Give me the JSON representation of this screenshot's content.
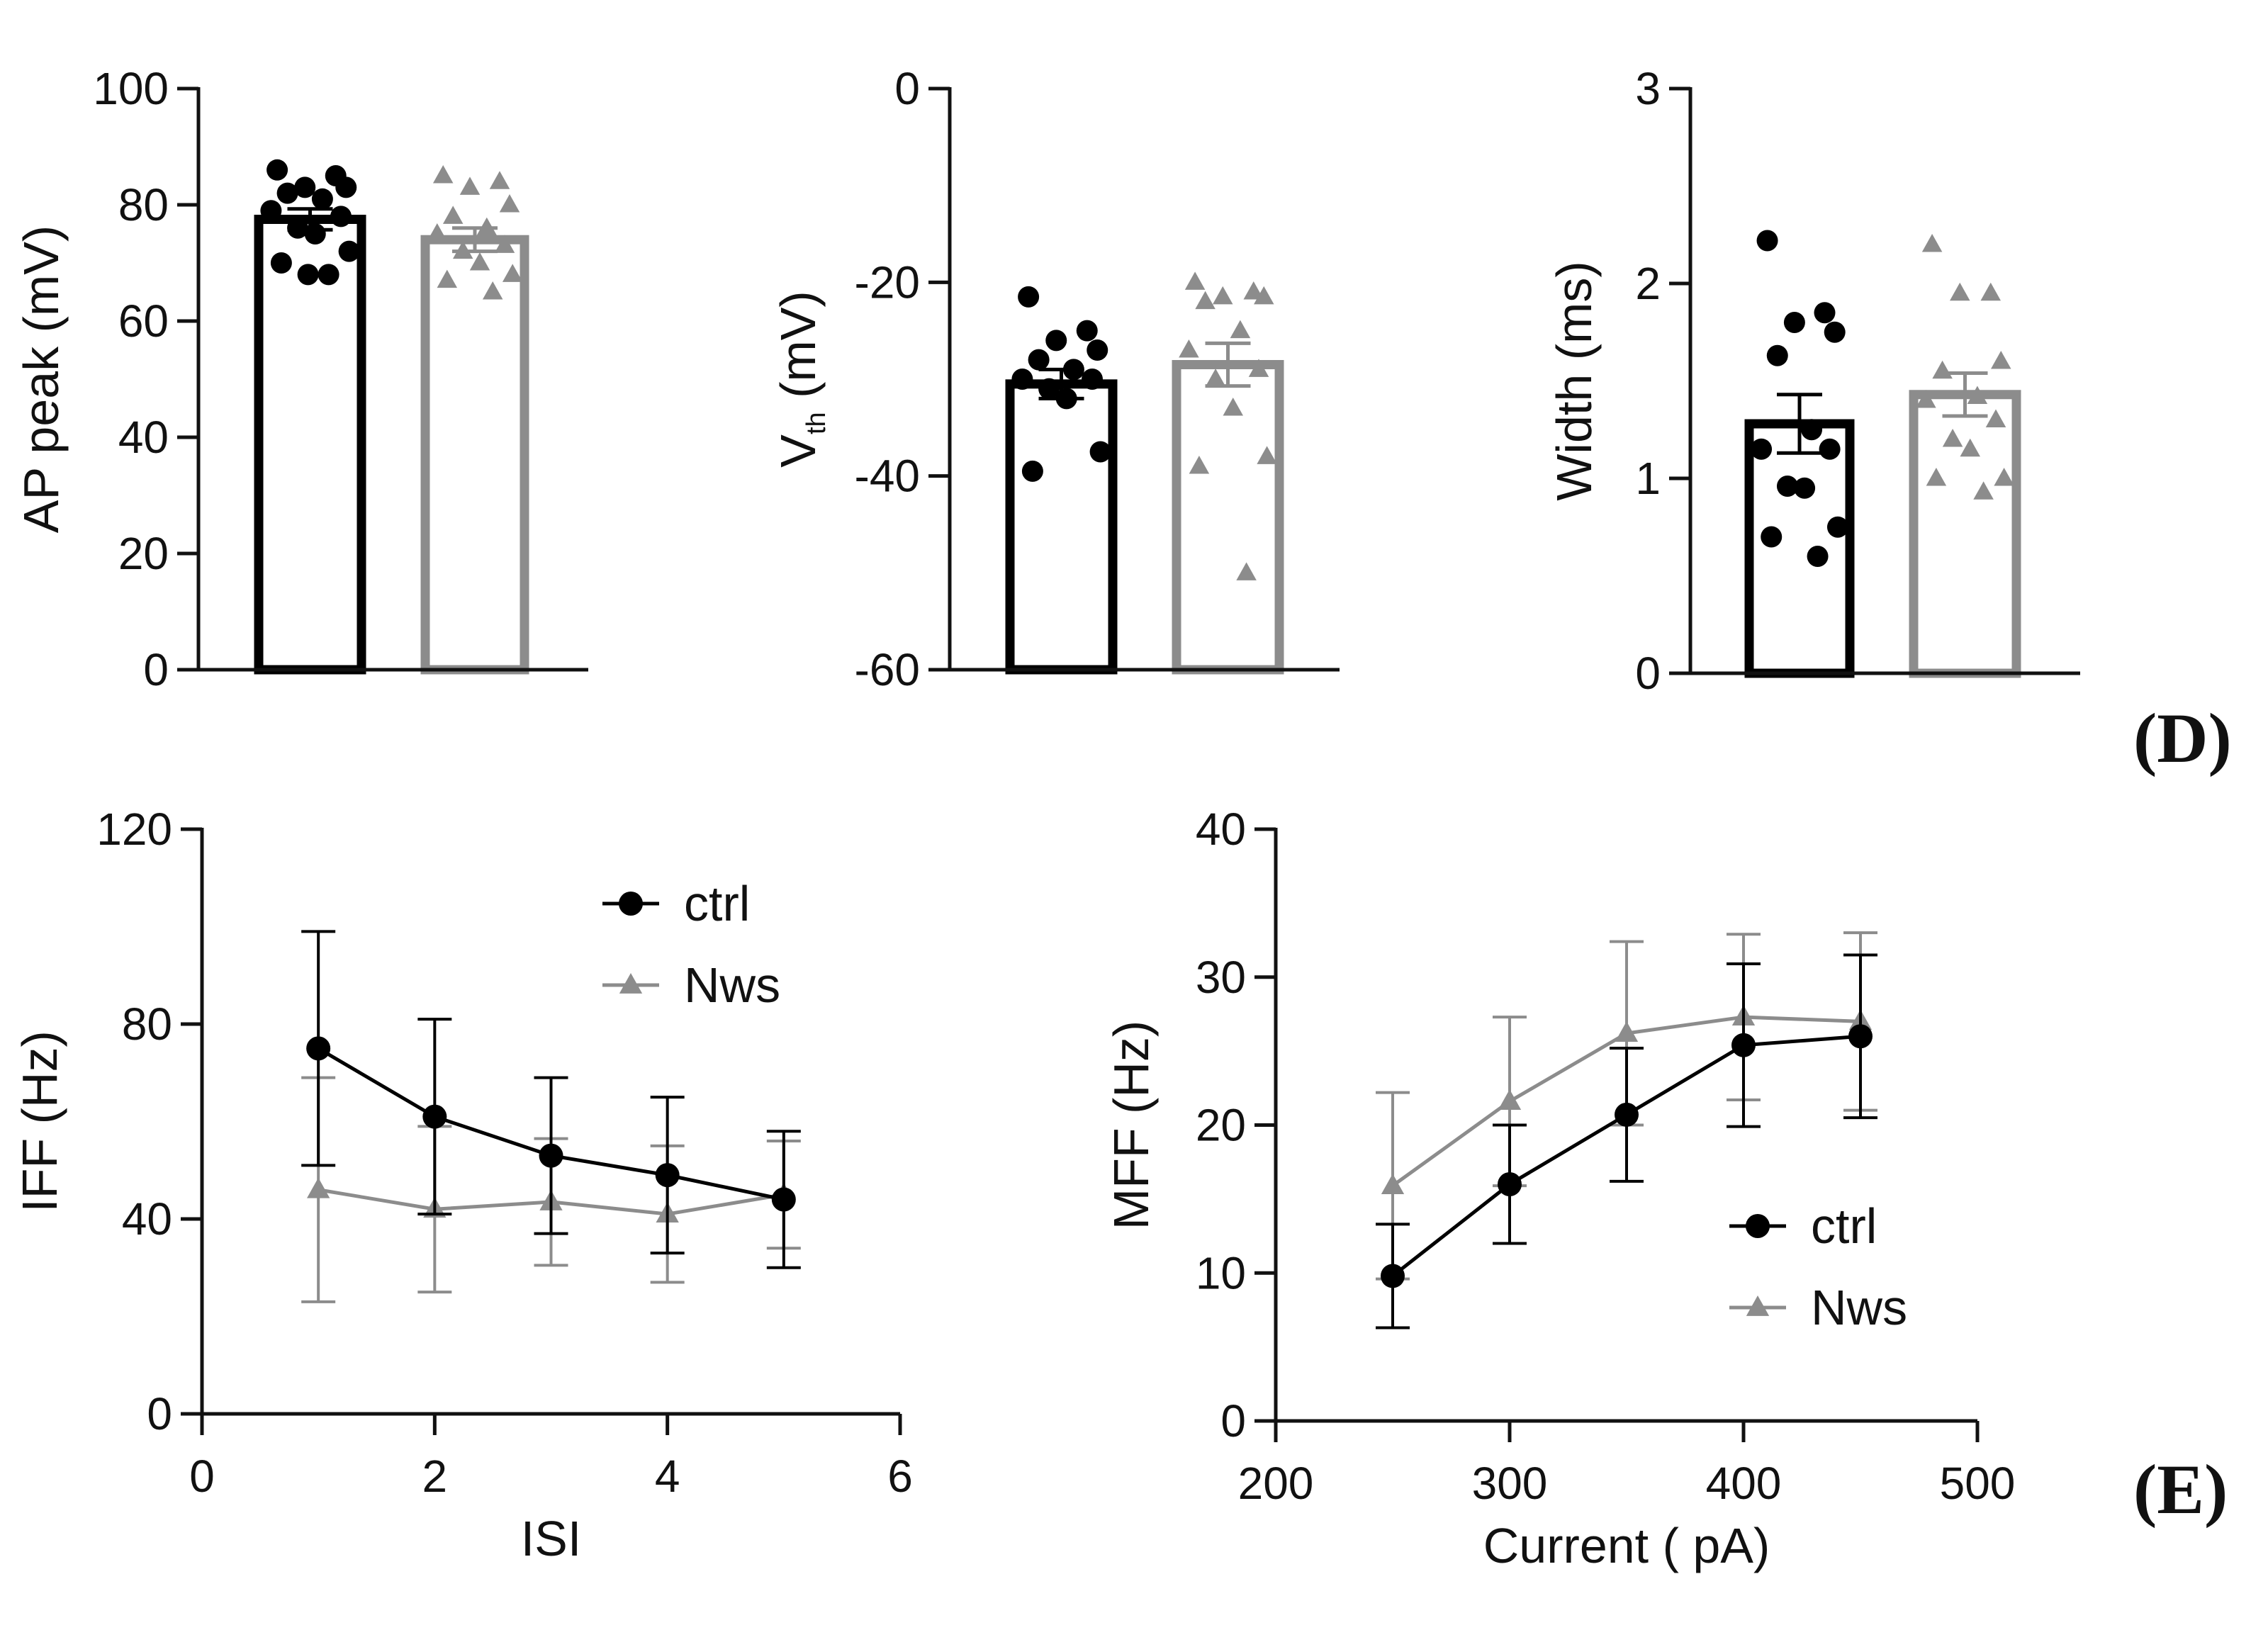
{
  "colors": {
    "ctrl": "#000000",
    "nws": "#8c8c8c",
    "axis": "#111111"
  },
  "chart_data": [
    {
      "id": "ap-peak",
      "type": "bar",
      "title": "",
      "xlabel": "",
      "ylabel": "AP peak (mV)",
      "ylim": [
        0,
        100
      ],
      "yticks": [
        0,
        20,
        40,
        60,
        80,
        100
      ],
      "ytick_labels": [
        "0",
        "20",
        "40",
        "60",
        "80",
        "100"
      ],
      "categories": [
        "ctrl",
        "Nws"
      ],
      "values": [
        77.5,
        74
      ],
      "sem": [
        1.8,
        2.0
      ],
      "points": [
        [
          86,
          85,
          83,
          83,
          82,
          81,
          79,
          78,
          76,
          75,
          72,
          70,
          68,
          68
        ],
        [
          85,
          84,
          83,
          80,
          78,
          76,
          75,
          73,
          72,
          70,
          68,
          67,
          65
        ]
      ]
    },
    {
      "id": "vth",
      "type": "bar",
      "title": "",
      "xlabel": "",
      "ylabel": "V",
      "ylabel_sub": "th",
      "ylabel_unit": " (mV)",
      "ylim": [
        -60,
        0
      ],
      "yticks": [
        -60,
        -40,
        -20,
        0
      ],
      "ytick_labels": [
        "-60",
        "-40",
        "-20",
        "0"
      ],
      "categories": [
        "ctrl",
        "Nws"
      ],
      "values": [
        -30.5,
        -28.5
      ],
      "sem": [
        1.5,
        2.2
      ],
      "points": [
        [
          -21.5,
          -25,
          -26,
          -27,
          -28,
          -29,
          -30,
          -30,
          -31,
          -32,
          -37.5,
          -39.5
        ],
        [
          -20,
          -21,
          -21.5,
          -21.5,
          -22,
          -25,
          -27,
          -29,
          -30,
          -33,
          -38,
          -39,
          -50
        ]
      ]
    },
    {
      "id": "width",
      "type": "bar",
      "title": "",
      "xlabel": "",
      "ylabel": "Width (ms)",
      "ylim": [
        0,
        3
      ],
      "yticks": [
        0,
        1,
        2,
        3
      ],
      "ytick_labels": [
        "0",
        "1",
        "2",
        "3"
      ],
      "categories": [
        "ctrl",
        "Nws"
      ],
      "values": [
        1.28,
        1.43
      ],
      "sem": [
        0.15,
        0.11
      ],
      "points": [
        [
          2.22,
          1.85,
          1.8,
          1.75,
          1.63,
          1.25,
          1.15,
          1.15,
          0.96,
          0.95,
          0.75,
          0.7,
          0.6
        ],
        [
          2.2,
          1.95,
          1.95,
          1.6,
          1.55,
          1.42,
          1.4,
          1.3,
          1.2,
          1.15,
          1.0,
          1.0,
          0.93
        ]
      ]
    },
    {
      "id": "iff",
      "type": "line",
      "title": "",
      "xlabel": "ISI",
      "ylabel": "IFF (Hz)",
      "xlim": [
        0,
        6
      ],
      "ylim": [
        0,
        120
      ],
      "xticks": [
        0,
        2,
        4,
        6
      ],
      "xtick_labels": [
        "0",
        "2",
        "4",
        "6"
      ],
      "yticks": [
        0,
        40,
        80,
        120
      ],
      "ytick_labels": [
        "0",
        "40",
        "80",
        "120"
      ],
      "legend_position": "top-right",
      "x": [
        1,
        2,
        3,
        4,
        5
      ],
      "series": [
        {
          "name": "ctrl",
          "marker": "circle",
          "values": [
            75,
            61,
            53,
            49,
            44
          ],
          "err": [
            24,
            20,
            16,
            16,
            14
          ]
        },
        {
          "name": "Nws",
          "marker": "triangle",
          "values": [
            46,
            42,
            43.5,
            41,
            45
          ],
          "err": [
            23,
            17,
            13,
            14,
            11
          ]
        }
      ]
    },
    {
      "id": "mff",
      "type": "line",
      "title": "",
      "xlabel": "Current ( pA)",
      "ylabel": "MFF (Hz)",
      "xlim": [
        200,
        500
      ],
      "ylim": [
        0,
        40
      ],
      "xticks": [
        200,
        300,
        400,
        500
      ],
      "xtick_labels": [
        "200",
        "300",
        "400",
        "500"
      ],
      "yticks": [
        0,
        10,
        20,
        30,
        40
      ],
      "ytick_labels": [
        "0",
        "10",
        "20",
        "30",
        "40"
      ],
      "legend_position": "bottom-right",
      "x": [
        250,
        300,
        350,
        400,
        450
      ],
      "series": [
        {
          "name": "ctrl",
          "marker": "circle",
          "values": [
            9.8,
            16,
            20.7,
            25.4,
            26
          ],
          "err": [
            3.5,
            4,
            4.5,
            5.5,
            5.5
          ]
        },
        {
          "name": "Nws",
          "marker": "triangle",
          "values": [
            15.9,
            21.6,
            26.2,
            27.3,
            27
          ],
          "err": [
            6.3,
            5.7,
            6.2,
            5.6,
            6
          ]
        }
      ]
    }
  ],
  "panel_labels": {
    "d": "(D)",
    "e": "(E)"
  }
}
